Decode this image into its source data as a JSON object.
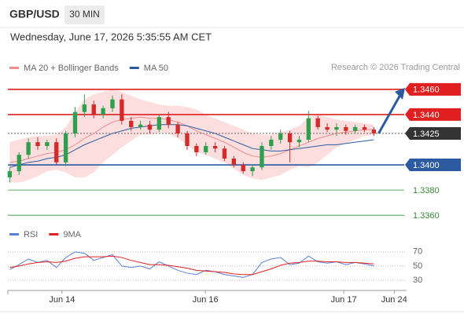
{
  "header": {
    "symbol": "GBP/USD",
    "timeframe": "30 MIN",
    "timestamp": "Wednesday, June 17, 2026 5:35:55 AM CET"
  },
  "chart_data": [
    {
      "type": "candlestick",
      "source": "Research © 2026 Trading Central",
      "open": [
        1.339,
        1.3395,
        1.3408,
        1.3418,
        1.3415,
        1.3418,
        1.3402,
        1.3425,
        1.3442,
        1.3448,
        1.344,
        1.3445,
        1.3452,
        1.3435,
        1.343,
        1.3432,
        1.3428,
        1.3438,
        1.3432,
        1.3425,
        1.3415,
        1.341,
        1.3415,
        1.3413,
        1.3405,
        1.34,
        1.3395,
        1.3398,
        1.3415,
        1.342,
        1.3425,
        1.3418,
        1.342,
        1.3437,
        1.343,
        1.3428,
        1.343,
        1.3427,
        1.343,
        1.3428
      ],
      "high": [
        1.3398,
        1.341,
        1.3421,
        1.3422,
        1.342,
        1.3421,
        1.3427,
        1.3446,
        1.3456,
        1.3451,
        1.3447,
        1.3455,
        1.3456,
        1.3438,
        1.3435,
        1.3435,
        1.344,
        1.3442,
        1.3434,
        1.3427,
        1.3417,
        1.3418,
        1.3418,
        1.3415,
        1.3407,
        1.3402,
        1.34,
        1.3418,
        1.3423,
        1.3428,
        1.3427,
        1.3423,
        1.3443,
        1.3439,
        1.3433,
        1.3433,
        1.3432,
        1.3432,
        1.3432,
        1.343
      ],
      "low": [
        1.3386,
        1.3392,
        1.3405,
        1.3412,
        1.3412,
        1.34,
        1.3399,
        1.3422,
        1.3438,
        1.3437,
        1.3437,
        1.3442,
        1.3432,
        1.3427,
        1.3428,
        1.3425,
        1.3426,
        1.3429,
        1.3422,
        1.3412,
        1.3407,
        1.3408,
        1.341,
        1.3403,
        1.3398,
        1.3393,
        1.3391,
        1.3396,
        1.3412,
        1.3417,
        1.3402,
        1.3414,
        1.3418,
        1.3428,
        1.3426,
        1.3423,
        1.3424,
        1.3425,
        1.3426,
        1.3423
      ],
      "close": [
        1.3395,
        1.3408,
        1.3418,
        1.3415,
        1.3418,
        1.3402,
        1.3425,
        1.3442,
        1.3448,
        1.344,
        1.3445,
        1.3452,
        1.3435,
        1.343,
        1.3432,
        1.3428,
        1.3438,
        1.3432,
        1.3425,
        1.3415,
        1.341,
        1.3415,
        1.3413,
        1.3405,
        1.34,
        1.3395,
        1.3398,
        1.3415,
        1.342,
        1.3425,
        1.3418,
        1.342,
        1.3437,
        1.343,
        1.3428,
        1.343,
        1.3427,
        1.343,
        1.3428,
        1.3425
      ],
      "up_color": "#2e9e4f",
      "down_color": "#d42a2a",
      "series": [
        {
          "name": "MA 20 + Bollinger Bands",
          "color": "#f08c8c",
          "band_color": "#fcdede",
          "values": [
            1.3402,
            1.3403,
            1.3405,
            1.3407,
            1.3409,
            1.341,
            1.3412,
            1.3416,
            1.3421,
            1.3425,
            1.343,
            1.3434,
            1.3436,
            1.3437,
            1.3438,
            1.3437,
            1.3437,
            1.3436,
            1.3434,
            1.3431,
            1.3427,
            1.3424,
            1.3421,
            1.3418,
            1.3414,
            1.341,
            1.3407,
            1.3406,
            1.3407,
            1.3409,
            1.3412,
            1.3415,
            1.3418,
            1.3421,
            1.3423,
            1.3425,
            1.3426,
            1.3427,
            1.3428,
            1.3428
          ],
          "upper": [
            1.3418,
            1.342,
            1.3422,
            1.3423,
            1.3423,
            1.3424,
            1.343,
            1.3442,
            1.3452,
            1.3456,
            1.3458,
            1.346,
            1.3458,
            1.3455,
            1.3452,
            1.345,
            1.3448,
            1.3447,
            1.3447,
            1.3446,
            1.3444,
            1.344,
            1.3437,
            1.3434,
            1.3431,
            1.3428,
            1.3425,
            1.3424,
            1.3424,
            1.3426,
            1.3428,
            1.3431,
            1.3438,
            1.344,
            1.3438,
            1.3436,
            1.3435,
            1.3434,
            1.3433,
            1.3432
          ],
          "lower": [
            1.3386,
            1.3386,
            1.3388,
            1.3391,
            1.3395,
            1.3396,
            1.3394,
            1.339,
            1.339,
            1.3394,
            1.3402,
            1.3408,
            1.3414,
            1.3419,
            1.3424,
            1.3424,
            1.3426,
            1.3425,
            1.3421,
            1.3416,
            1.341,
            1.3408,
            1.3405,
            1.3402,
            1.3397,
            1.3392,
            1.3389,
            1.3388,
            1.339,
            1.3392,
            1.3396,
            1.3399,
            1.3398,
            1.3402,
            1.3408,
            1.3414,
            1.3417,
            1.342,
            1.3423,
            1.3424
          ]
        },
        {
          "name": "MA 50",
          "color": "#2c5aa0",
          "values": [
            1.3398,
            1.34,
            1.3402,
            1.3403,
            1.3405,
            1.3406,
            1.3408,
            1.3412,
            1.3416,
            1.3419,
            1.3422,
            1.3425,
            1.3427,
            1.3429,
            1.343,
            1.3431,
            1.3432,
            1.3432,
            1.3432,
            1.3431,
            1.3429,
            1.3427,
            1.3425,
            1.3422,
            1.3419,
            1.3416,
            1.3413,
            1.3412,
            1.3411,
            1.3411,
            1.3412,
            1.3413,
            1.3414,
            1.3415,
            1.3416,
            1.3416,
            1.3417,
            1.3418,
            1.3419,
            1.342
          ]
        }
      ],
      "levels": [
        {
          "value": 1.346,
          "label": "1.3460",
          "color": "#e02020",
          "boxed": true
        },
        {
          "value": 1.344,
          "label": "1.3440",
          "color": "#e02020",
          "boxed": true
        },
        {
          "value": 1.3425,
          "label": "1.3425",
          "color": "#333333",
          "boxed": true,
          "dotted": true
        },
        {
          "value": 1.34,
          "label": "1.3400",
          "color": "#2c5aa0",
          "boxed": true
        },
        {
          "value": 1.338,
          "label": "1.3380",
          "color": "#3a8a3a",
          "boxed": false
        },
        {
          "value": 1.336,
          "label": "1.3360",
          "color": "#3a8a3a",
          "boxed": false
        }
      ],
      "ylim": [
        1.3352,
        1.3468
      ],
      "xlim": [
        -0.2,
        42.5
      ],
      "xticks": [
        {
          "value": 5.6,
          "label": "Jun 14"
        },
        {
          "value": 20.95,
          "label": "Jun 16"
        },
        {
          "value": 35.77,
          "label": "Jun 17"
        },
        {
          "value": 41.17,
          "label": "Jun 24"
        }
      ]
    },
    {
      "type": "line",
      "series": [
        {
          "name": "RSI",
          "color": "#5b7fd6",
          "values": [
            45,
            52,
            60,
            55,
            58,
            48,
            62,
            70,
            68,
            58,
            62,
            66,
            50,
            48,
            50,
            46,
            56,
            50,
            44,
            40,
            38,
            44,
            42,
            38,
            36,
            34,
            38,
            55,
            60,
            62,
            52,
            54,
            64,
            56,
            54,
            56,
            52,
            55,
            53,
            50
          ]
        },
        {
          "name": "9MA",
          "color": "#e02020",
          "values": [
            48,
            50,
            53,
            55,
            56,
            55,
            57,
            61,
            63,
            63,
            63,
            64,
            62,
            58,
            55,
            52,
            52,
            51,
            49,
            47,
            44,
            43,
            42,
            41,
            39,
            38,
            38,
            42,
            46,
            51,
            54,
            55,
            57,
            57,
            56,
            56,
            55,
            55,
            54,
            53
          ]
        }
      ],
      "ylim": [
        20,
        82
      ],
      "yticks": [
        30,
        50,
        70
      ]
    }
  ]
}
